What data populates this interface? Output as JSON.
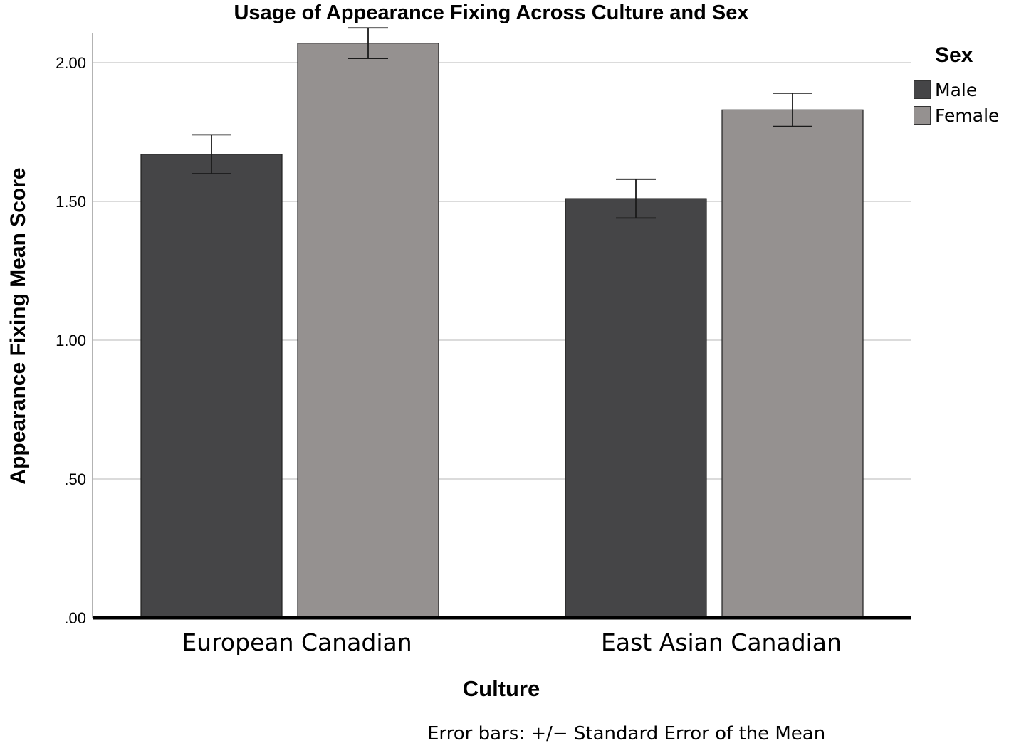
{
  "chart_data": {
    "type": "bar",
    "title": "Usage of Appearance Fixing Across Culture and Sex",
    "xlabel": "Culture",
    "ylabel": "Appearance Fixing Mean Score",
    "categories": [
      "European Canadian",
      "East Asian Canadian"
    ],
    "series": [
      {
        "name": "Male",
        "color": "#454547",
        "values": [
          1.67,
          1.51
        ],
        "errors": [
          0.07,
          0.07
        ]
      },
      {
        "name": "Female",
        "color": "#959190",
        "values": [
          2.07,
          1.83
        ],
        "errors": [
          0.055,
          0.06
        ]
      }
    ],
    "ylim": [
      0,
      2.1
    ],
    "yticks": [
      0,
      0.5,
      1.0,
      1.5,
      2.0
    ],
    "ytick_labels": [
      ".00",
      ".50",
      "1.00",
      "1.50",
      "2.00"
    ],
    "grid": "horizontal",
    "legend": {
      "title": "Sex",
      "position": "top-right"
    },
    "note": "Error bars: +/− Standard Error of the Mean"
  }
}
